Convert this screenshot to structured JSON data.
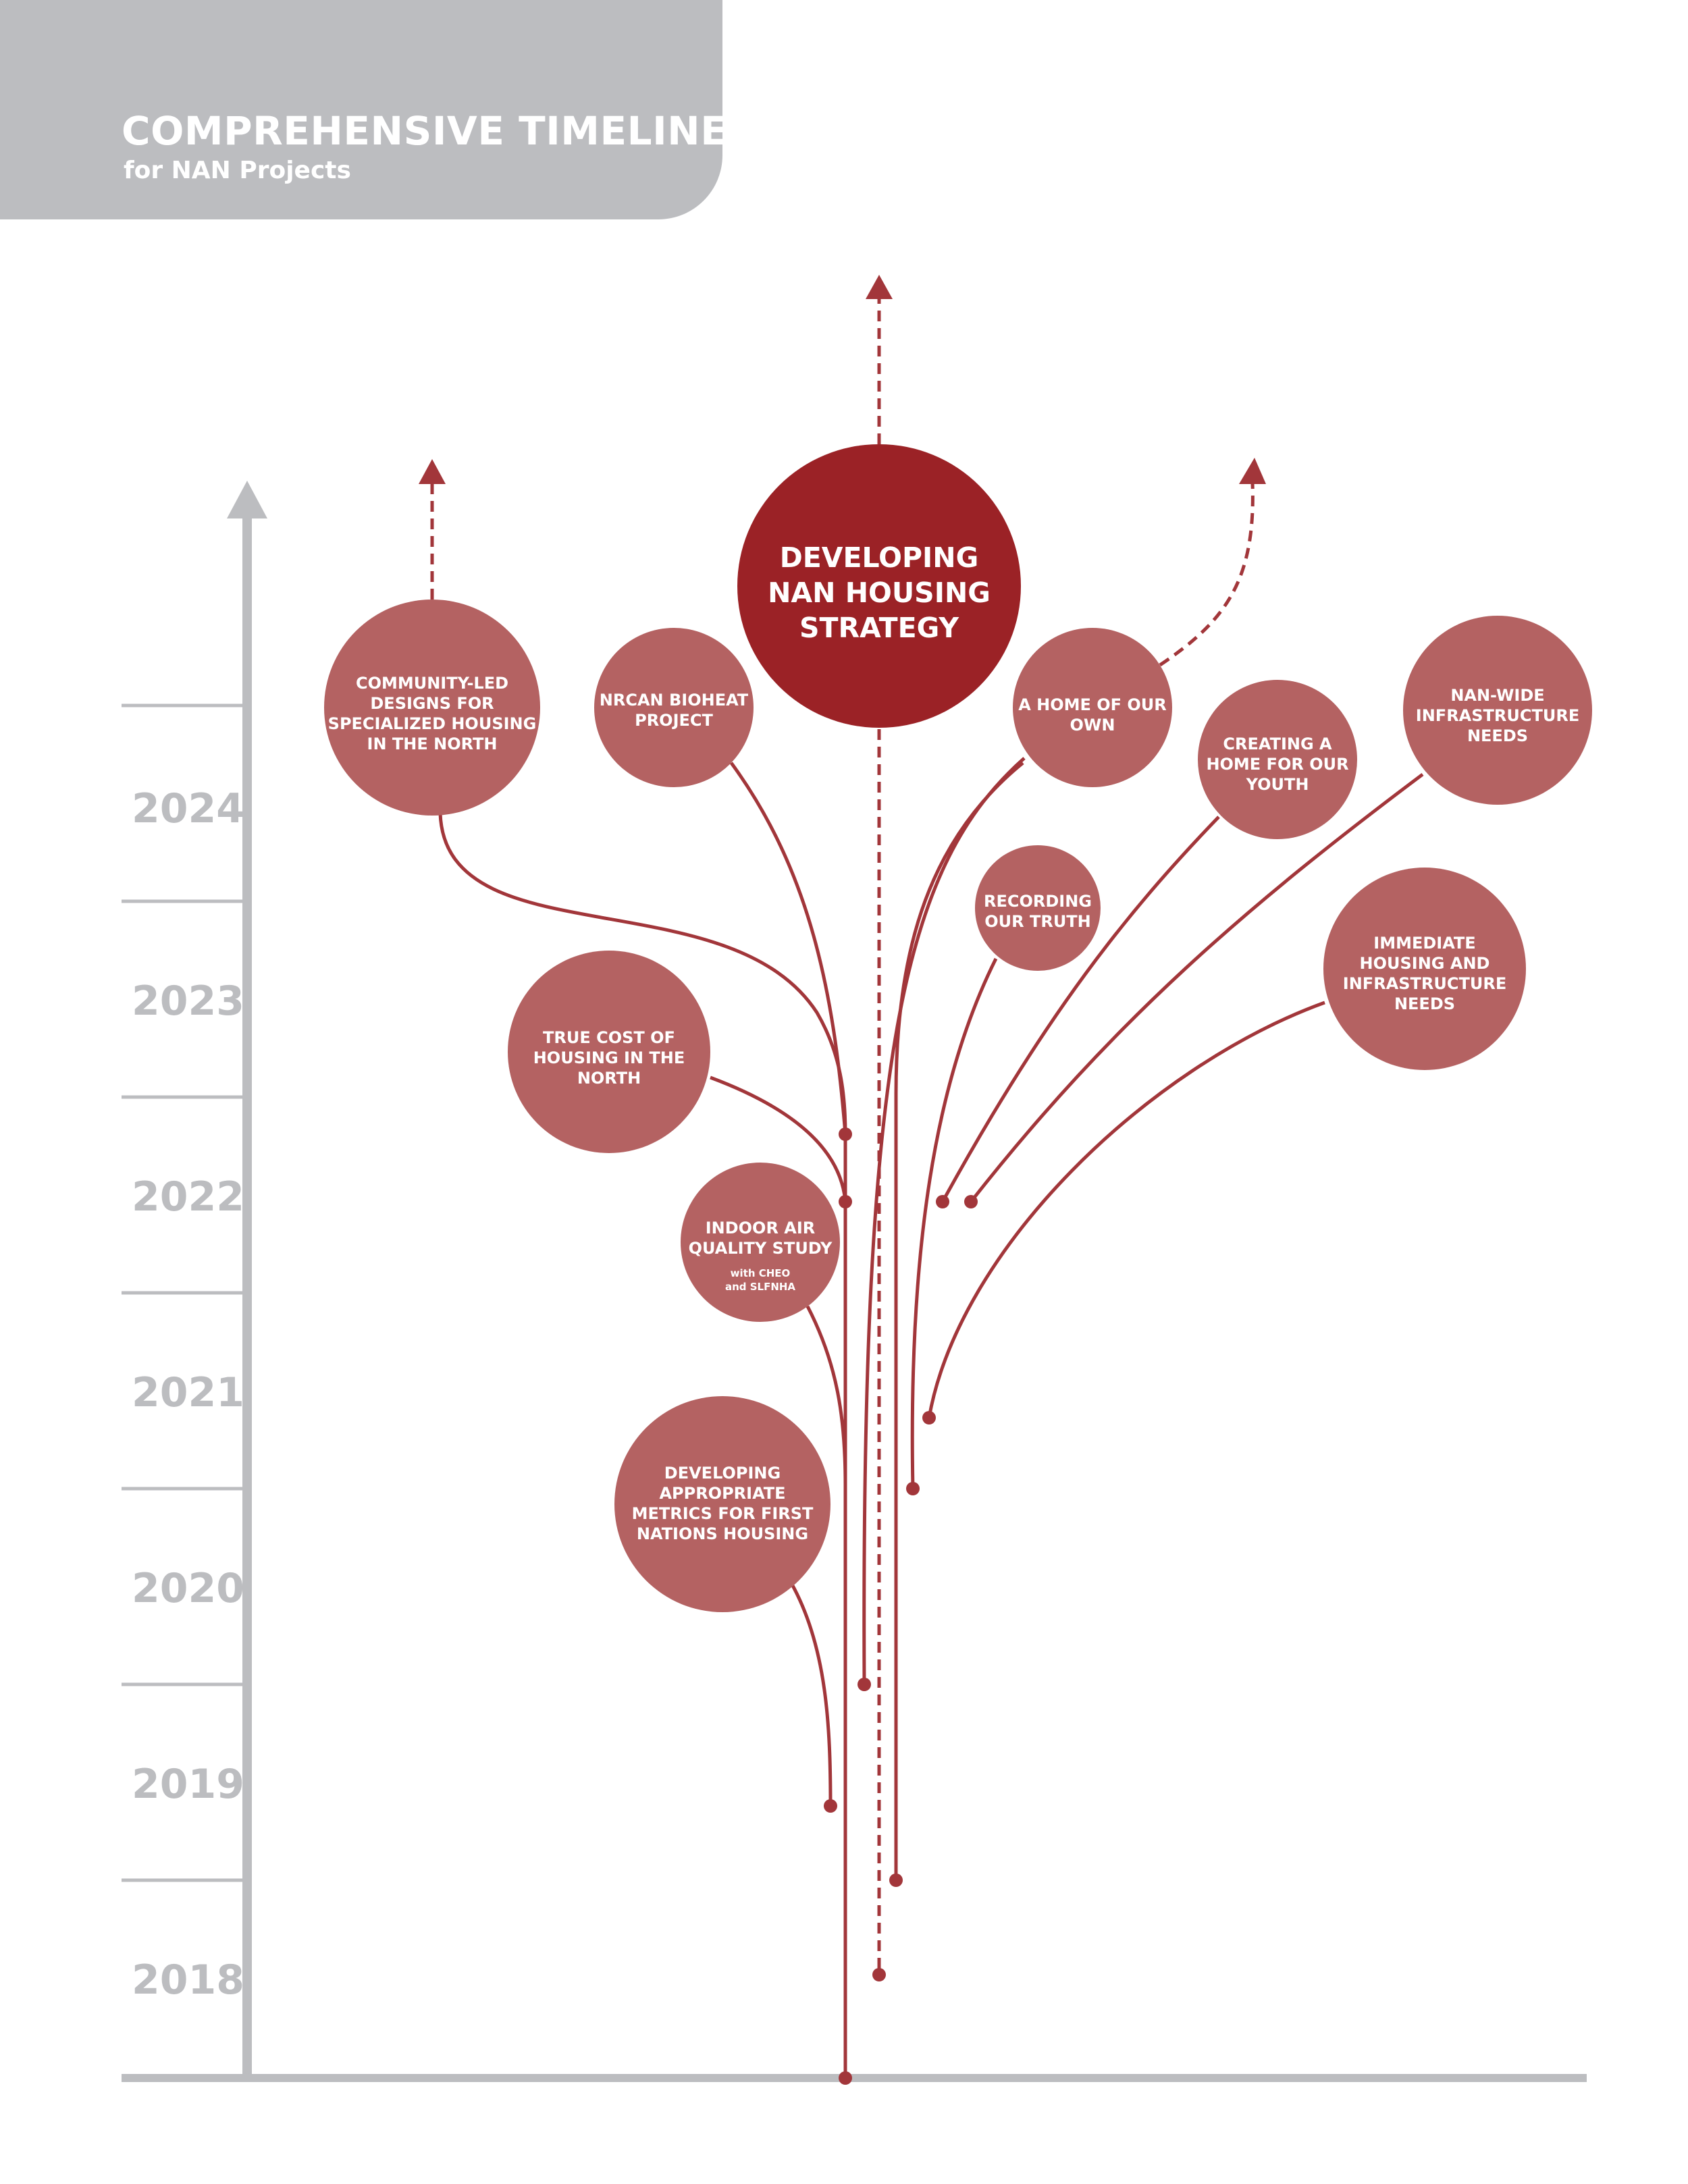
{
  "header": {
    "title": "COMPREHENSIVE TIMELINE",
    "subtitle": "for NAN Projects"
  },
  "years": [
    "2024",
    "2023",
    "2022",
    "2021",
    "2020",
    "2019",
    "2018"
  ],
  "colors": {
    "gray": "#bcbdc0",
    "node": "#b46262",
    "center": "#9b2226",
    "line": "#a2363a"
  },
  "nodes": {
    "center": [
      "DEVELOPING",
      "NAN HOUSING",
      "STRATEGY"
    ],
    "community_led": [
      "COMMUNITY-LED",
      "DESIGNS FOR",
      "SPECIALIZED HOUSING",
      "IN THE NORTH"
    ],
    "nrcan": [
      "NRCAN BIOHEAT",
      "PROJECT"
    ],
    "home_of_our_own": [
      "A HOME OF OUR",
      "OWN"
    ],
    "creating_home_youth": [
      "CREATING A",
      "HOME FOR OUR",
      "YOUTH"
    ],
    "nan_wide": [
      "NAN-WIDE",
      "INFRASTRUCTURE",
      "NEEDS"
    ],
    "recording_truth": [
      "RECORDING",
      "OUR TRUTH"
    ],
    "immediate_housing": [
      "IMMEDIATE",
      "HOUSING AND",
      "INFRASTRUCTURE",
      "NEEDS"
    ],
    "true_cost": [
      "TRUE COST OF",
      "HOUSING IN THE",
      "NORTH"
    ],
    "indoor_air": [
      "INDOOR AIR",
      "QUALITY STUDY"
    ],
    "indoor_air_partners": [
      "with CHEO",
      "and SLFNHA"
    ],
    "metrics": [
      "DEVELOPING",
      "APPROPRIATE",
      "METRICS FOR FIRST",
      "NATIONS HOUSING"
    ]
  }
}
